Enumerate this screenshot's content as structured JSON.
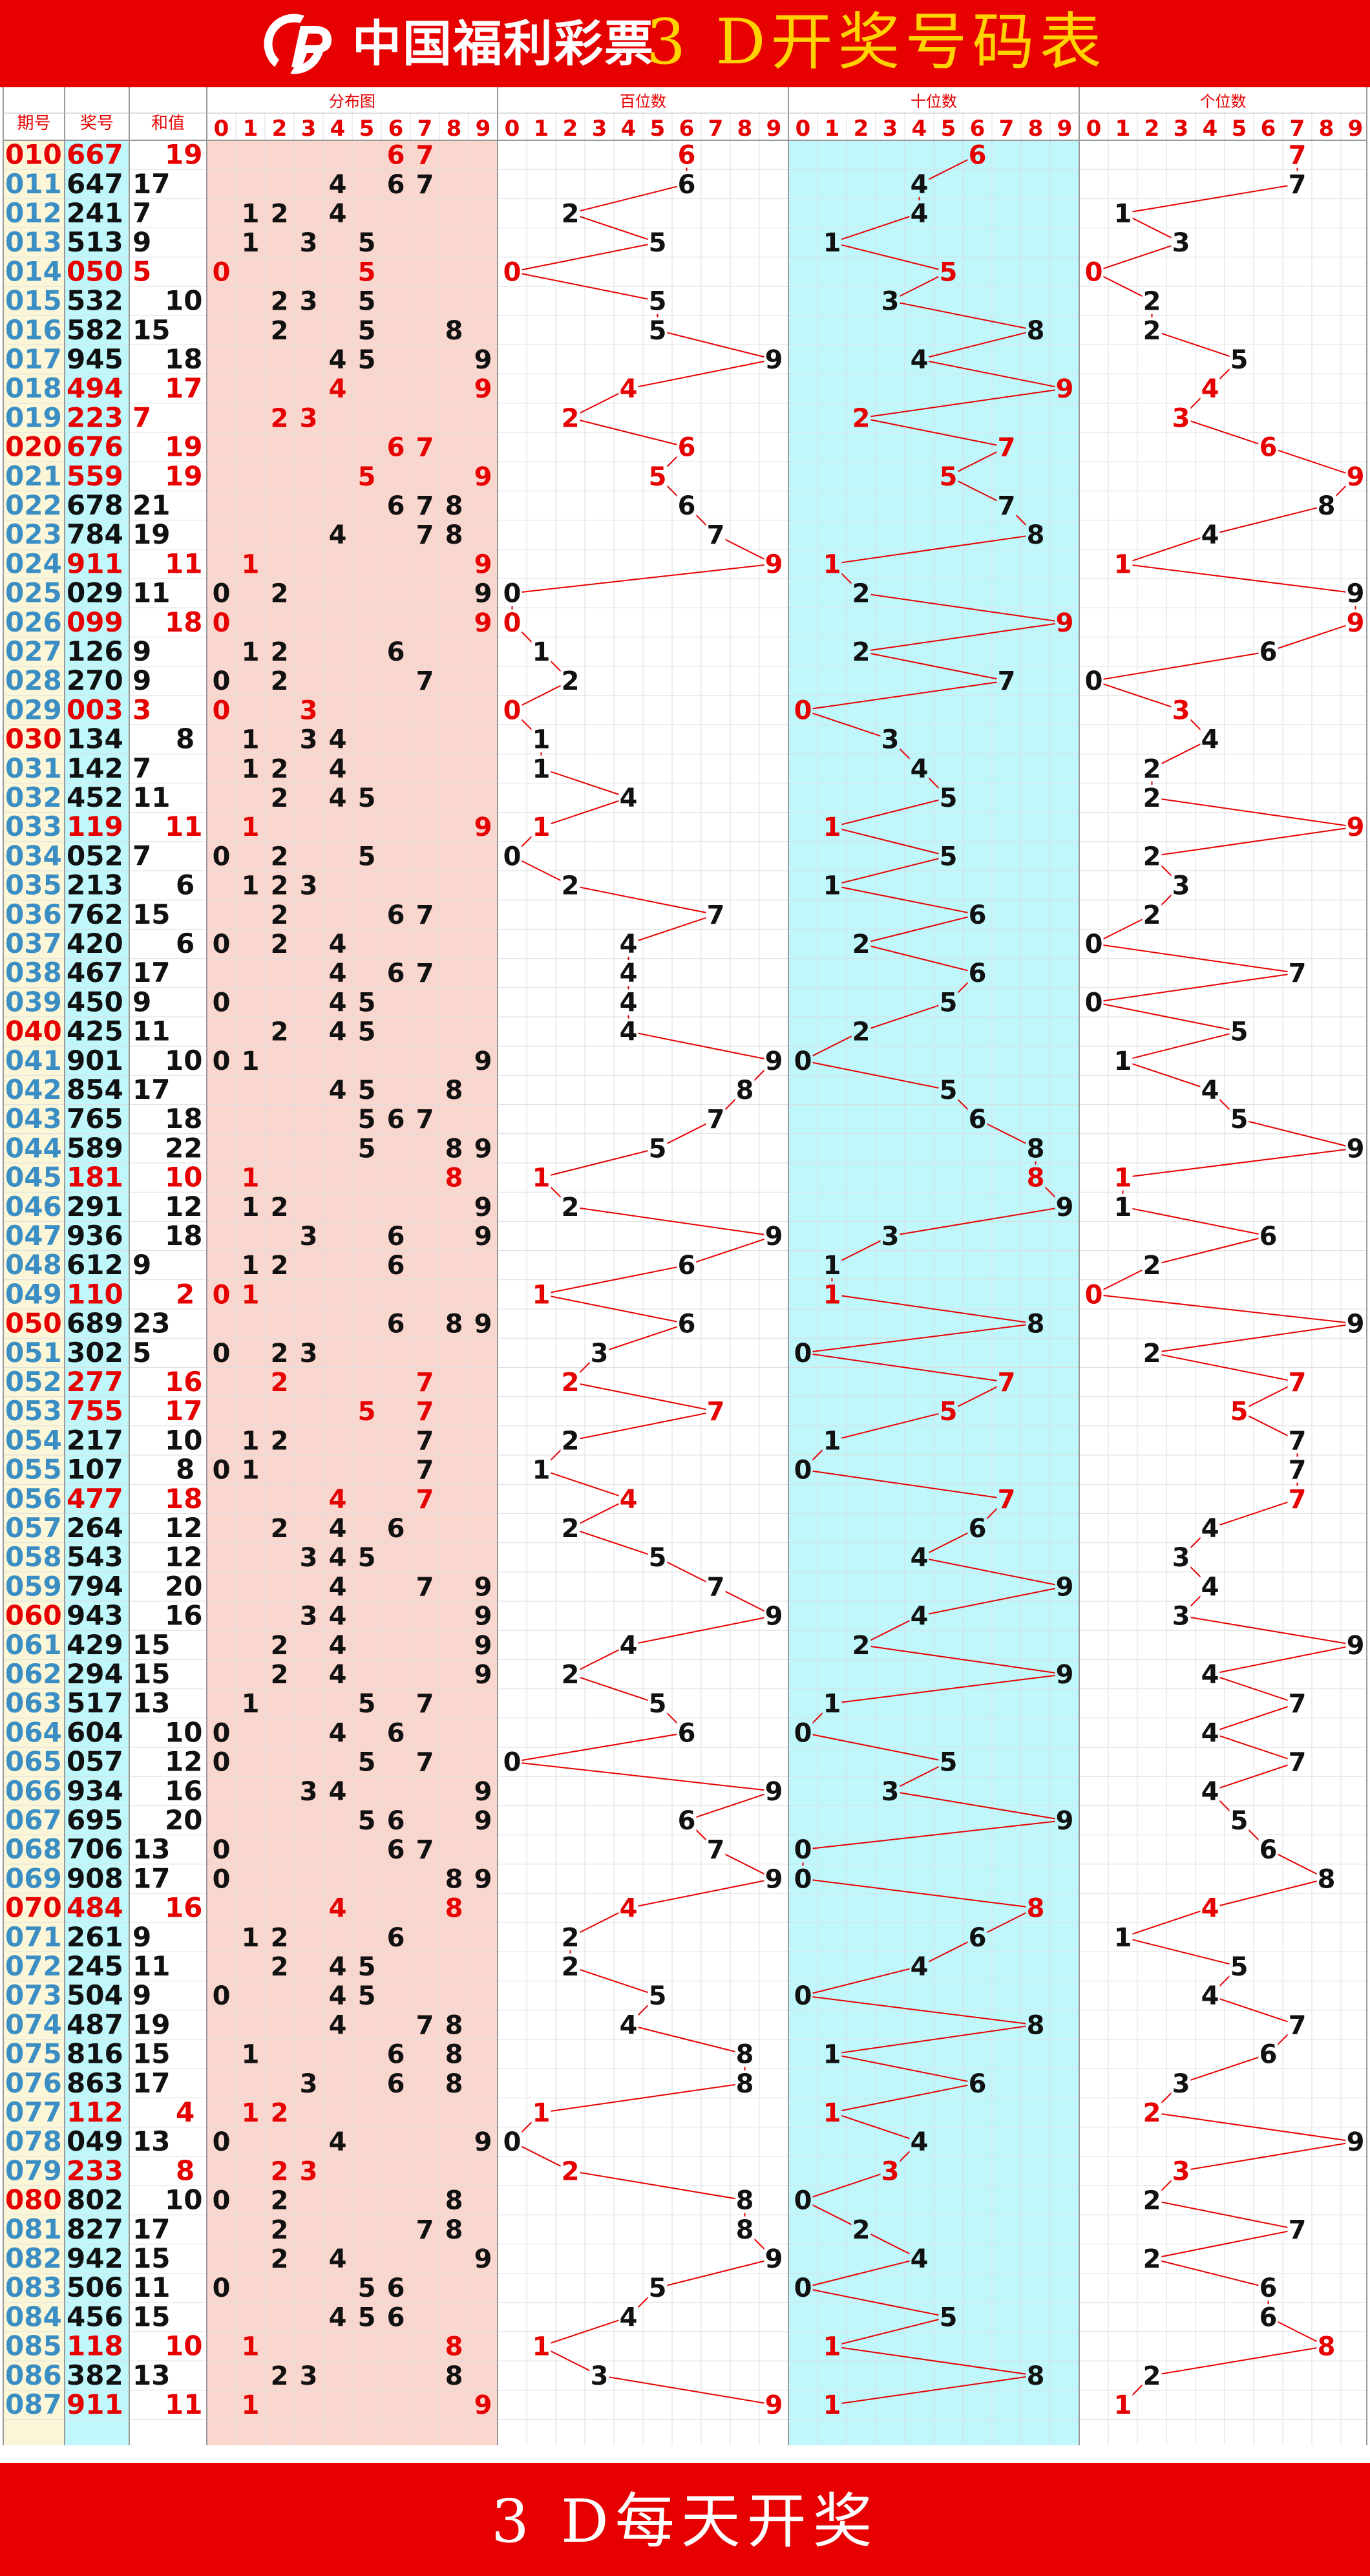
{
  "header": {
    "brand": "中国福利彩票",
    "title": "3 D开奖号码表",
    "logo_icon": "welfare-lottery-logo-icon"
  },
  "footer": {
    "text": "3 D每天开奖"
  },
  "columns": {
    "issue": "期号",
    "number": "奖号",
    "sum": "和值",
    "distribution": "分布图",
    "hundreds": "百位数",
    "tens": "十位数",
    "units": "个位数",
    "digits": [
      "0",
      "1",
      "2",
      "3",
      "4",
      "5",
      "6",
      "7",
      "8",
      "9"
    ]
  },
  "colors": {
    "red": "#e60000",
    "black": "#111111",
    "issue_blue": "#3a8ec4",
    "pink_bg": "#f9d7cf",
    "cyan_bg": "#bff7fb",
    "cream_bg": "#fbf6d8",
    "grid": "#dddddd"
  },
  "draws": [
    {
      "issue": "010",
      "number": "667",
      "sum": "19",
      "hl": true
    },
    {
      "issue": "011",
      "number": "647",
      "sum": "17",
      "hl": false
    },
    {
      "issue": "012",
      "number": "241",
      "sum": "7",
      "hl": false
    },
    {
      "issue": "013",
      "number": "513",
      "sum": "9",
      "hl": false
    },
    {
      "issue": "014",
      "number": "050",
      "sum": "5",
      "hl": true
    },
    {
      "issue": "015",
      "number": "532",
      "sum": "10",
      "hl": false
    },
    {
      "issue": "016",
      "number": "582",
      "sum": "15",
      "hl": false
    },
    {
      "issue": "017",
      "number": "945",
      "sum": "18",
      "hl": false
    },
    {
      "issue": "018",
      "number": "494",
      "sum": "17",
      "hl": true
    },
    {
      "issue": "019",
      "number": "223",
      "sum": "7",
      "hl": true
    },
    {
      "issue": "020",
      "number": "676",
      "sum": "19",
      "hl": true
    },
    {
      "issue": "021",
      "number": "559",
      "sum": "19",
      "hl": true
    },
    {
      "issue": "022",
      "number": "678",
      "sum": "21",
      "hl": false
    },
    {
      "issue": "023",
      "number": "784",
      "sum": "19",
      "hl": false
    },
    {
      "issue": "024",
      "number": "911",
      "sum": "11",
      "hl": true
    },
    {
      "issue": "025",
      "number": "029",
      "sum": "11",
      "hl": false
    },
    {
      "issue": "026",
      "number": "099",
      "sum": "18",
      "hl": true
    },
    {
      "issue": "027",
      "number": "126",
      "sum": "9",
      "hl": false
    },
    {
      "issue": "028",
      "number": "270",
      "sum": "9",
      "hl": false
    },
    {
      "issue": "029",
      "number": "003",
      "sum": "3",
      "hl": true
    },
    {
      "issue": "030",
      "number": "134",
      "sum": "8",
      "hl": false
    },
    {
      "issue": "031",
      "number": "142",
      "sum": "7",
      "hl": false
    },
    {
      "issue": "032",
      "number": "452",
      "sum": "11",
      "hl": false
    },
    {
      "issue": "033",
      "number": "119",
      "sum": "11",
      "hl": true
    },
    {
      "issue": "034",
      "number": "052",
      "sum": "7",
      "hl": false
    },
    {
      "issue": "035",
      "number": "213",
      "sum": "6",
      "hl": false
    },
    {
      "issue": "036",
      "number": "762",
      "sum": "15",
      "hl": false
    },
    {
      "issue": "037",
      "number": "420",
      "sum": "6",
      "hl": false
    },
    {
      "issue": "038",
      "number": "467",
      "sum": "17",
      "hl": false
    },
    {
      "issue": "039",
      "number": "450",
      "sum": "9",
      "hl": false
    },
    {
      "issue": "040",
      "number": "425",
      "sum": "11",
      "hl": false
    },
    {
      "issue": "041",
      "number": "901",
      "sum": "10",
      "hl": false
    },
    {
      "issue": "042",
      "number": "854",
      "sum": "17",
      "hl": false
    },
    {
      "issue": "043",
      "number": "765",
      "sum": "18",
      "hl": false
    },
    {
      "issue": "044",
      "number": "589",
      "sum": "22",
      "hl": false
    },
    {
      "issue": "045",
      "number": "181",
      "sum": "10",
      "hl": true
    },
    {
      "issue": "046",
      "number": "291",
      "sum": "12",
      "hl": false
    },
    {
      "issue": "047",
      "number": "936",
      "sum": "18",
      "hl": false
    },
    {
      "issue": "048",
      "number": "612",
      "sum": "9",
      "hl": false
    },
    {
      "issue": "049",
      "number": "110",
      "sum": "2",
      "hl": true
    },
    {
      "issue": "050",
      "number": "689",
      "sum": "23",
      "hl": false
    },
    {
      "issue": "051",
      "number": "302",
      "sum": "5",
      "hl": false
    },
    {
      "issue": "052",
      "number": "277",
      "sum": "16",
      "hl": true
    },
    {
      "issue": "053",
      "number": "755",
      "sum": "17",
      "hl": true
    },
    {
      "issue": "054",
      "number": "217",
      "sum": "10",
      "hl": false
    },
    {
      "issue": "055",
      "number": "107",
      "sum": "8",
      "hl": false
    },
    {
      "issue": "056",
      "number": "477",
      "sum": "18",
      "hl": true
    },
    {
      "issue": "057",
      "number": "264",
      "sum": "12",
      "hl": false
    },
    {
      "issue": "058",
      "number": "543",
      "sum": "12",
      "hl": false
    },
    {
      "issue": "059",
      "number": "794",
      "sum": "20",
      "hl": false
    },
    {
      "issue": "060",
      "number": "943",
      "sum": "16",
      "hl": false
    },
    {
      "issue": "061",
      "number": "429",
      "sum": "15",
      "hl": false
    },
    {
      "issue": "062",
      "number": "294",
      "sum": "15",
      "hl": false
    },
    {
      "issue": "063",
      "number": "517",
      "sum": "13",
      "hl": false
    },
    {
      "issue": "064",
      "number": "604",
      "sum": "10",
      "hl": false
    },
    {
      "issue": "065",
      "number": "057",
      "sum": "12",
      "hl": false
    },
    {
      "issue": "066",
      "number": "934",
      "sum": "16",
      "hl": false
    },
    {
      "issue": "067",
      "number": "695",
      "sum": "20",
      "hl": false
    },
    {
      "issue": "068",
      "number": "706",
      "sum": "13",
      "hl": false
    },
    {
      "issue": "069",
      "number": "908",
      "sum": "17",
      "hl": false
    },
    {
      "issue": "070",
      "number": "484",
      "sum": "16",
      "hl": true
    },
    {
      "issue": "071",
      "number": "261",
      "sum": "9",
      "hl": false
    },
    {
      "issue": "072",
      "number": "245",
      "sum": "11",
      "hl": false
    },
    {
      "issue": "073",
      "number": "504",
      "sum": "9",
      "hl": false
    },
    {
      "issue": "074",
      "number": "487",
      "sum": "19",
      "hl": false
    },
    {
      "issue": "075",
      "number": "816",
      "sum": "15",
      "hl": false
    },
    {
      "issue": "076",
      "number": "863",
      "sum": "17",
      "hl": false
    },
    {
      "issue": "077",
      "number": "112",
      "sum": "4",
      "hl": true
    },
    {
      "issue": "078",
      "number": "049",
      "sum": "13",
      "hl": false
    },
    {
      "issue": "079",
      "number": "233",
      "sum": "8",
      "hl": true
    },
    {
      "issue": "080",
      "number": "802",
      "sum": "10",
      "hl": false
    },
    {
      "issue": "081",
      "number": "827",
      "sum": "17",
      "hl": false
    },
    {
      "issue": "082",
      "number": "942",
      "sum": "15",
      "hl": false
    },
    {
      "issue": "083",
      "number": "506",
      "sum": "11",
      "hl": false
    },
    {
      "issue": "084",
      "number": "456",
      "sum": "15",
      "hl": false
    },
    {
      "issue": "085",
      "number": "118",
      "sum": "10",
      "hl": true
    },
    {
      "issue": "086",
      "number": "382",
      "sum": "13",
      "hl": false
    },
    {
      "issue": "087",
      "number": "911",
      "sum": "11",
      "hl": true
    }
  ]
}
